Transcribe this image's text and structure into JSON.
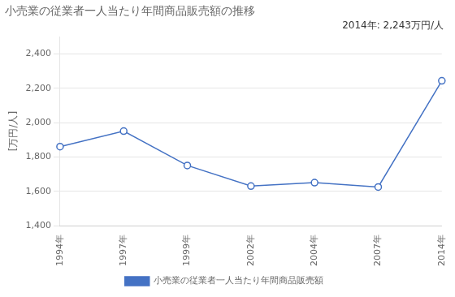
{
  "chart_data": {
    "type": "line",
    "title": "小売業の従業者一人当たり年間商品販売額の推移",
    "ylabel": "[万円/人]",
    "annotation": "2014年: 2,243万円/人",
    "categories": [
      "1994年",
      "1997年",
      "1999年",
      "2002年",
      "2004年",
      "2007年",
      "2014年"
    ],
    "series": [
      {
        "name": "小売業の従業者一人当たり年間商品販売額",
        "color": "#4472c4",
        "marker": "circle",
        "values": [
          1860,
          1950,
          1750,
          1630,
          1650,
          1625,
          2243
        ]
      }
    ],
    "ylim": [
      1400,
      2500
    ],
    "yticks": [
      {
        "value": 1400,
        "label": "1,400"
      },
      {
        "value": 1600,
        "label": "1,600"
      },
      {
        "value": 1800,
        "label": "1,800"
      },
      {
        "value": 2000,
        "label": "2,000"
      },
      {
        "value": 2200,
        "label": "2,200"
      },
      {
        "value": 2400,
        "label": "2,400"
      }
    ],
    "grid": true,
    "legend": "bottom"
  }
}
